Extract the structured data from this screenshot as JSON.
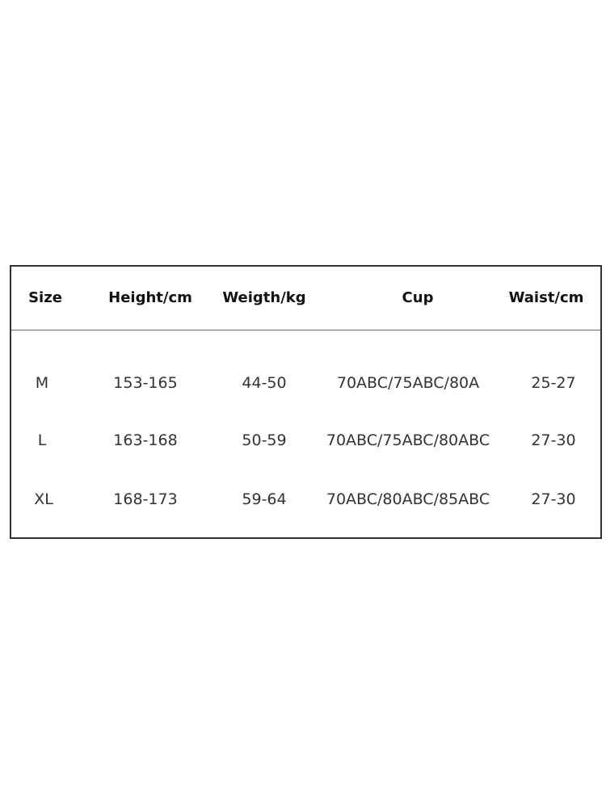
{
  "table": {
    "header": [
      "Size",
      "Height/cm",
      "Weigth/kg",
      "Cup",
      "Waist/cm"
    ],
    "rows": [
      [
        "M",
        "153-165",
        "44-50",
        "70ABC/75ABC/80A",
        "25-27"
      ],
      [
        "L",
        "163-168",
        "50-59",
        "70ABC/75ABC/80ABC",
        "27-30"
      ],
      [
        "XL",
        "168-173",
        "59-64",
        "70ABC/80ABC/85ABC",
        "27-30"
      ]
    ]
  }
}
